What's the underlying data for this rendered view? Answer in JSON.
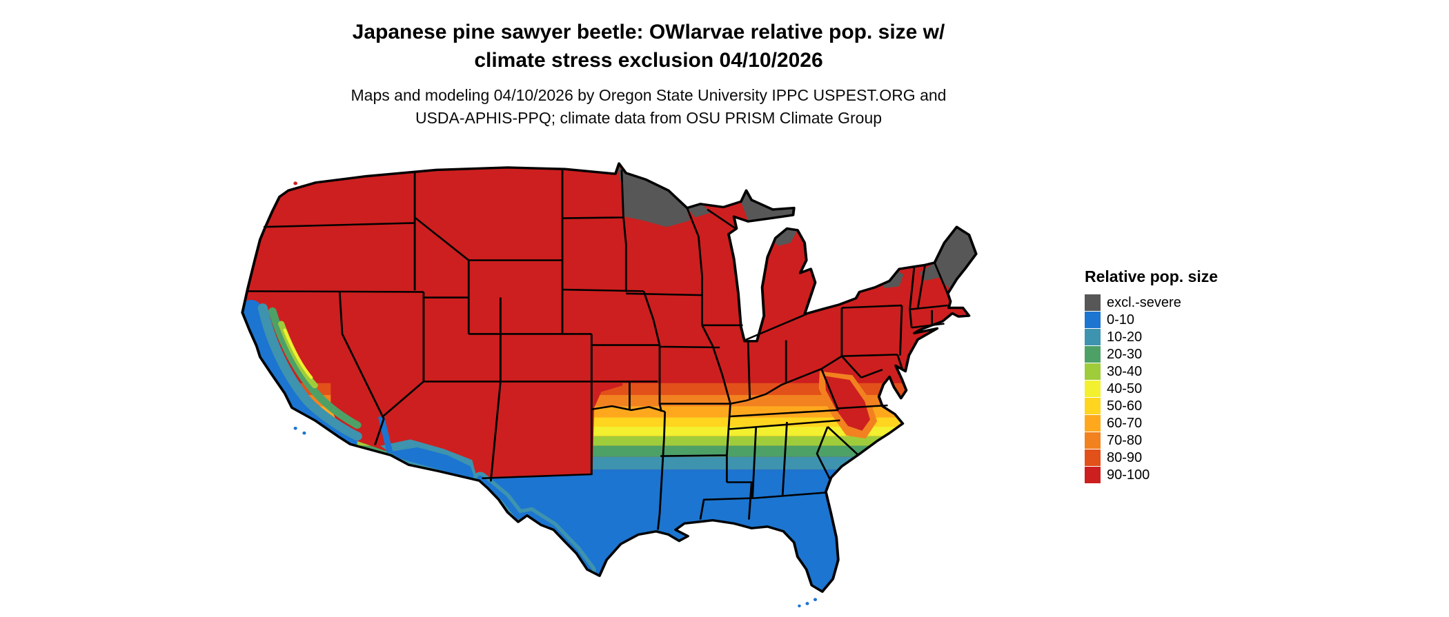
{
  "title": {
    "line1": "Japanese pine sawyer beetle: OWlarvae relative pop. size w/",
    "line2": "climate stress exclusion 04/10/2026"
  },
  "subtitle": {
    "line1": "Maps and modeling 04/10/2026 by Oregon State University IPPC USPEST.ORG and",
    "line2": "USDA-APHIS-PPQ; climate data from OSU PRISM Climate Group"
  },
  "legend": {
    "title": "Relative pop. size",
    "entries": [
      {
        "label": "excl.-severe",
        "color": "#575757"
      },
      {
        "label": "0-10",
        "color": "#1C75D0"
      },
      {
        "label": "10-20",
        "color": "#3E93AE"
      },
      {
        "label": "20-30",
        "color": "#4DA167"
      },
      {
        "label": "30-40",
        "color": "#9FCC3B"
      },
      {
        "label": "40-50",
        "color": "#F2F02F"
      },
      {
        "label": "50-60",
        "color": "#FFD51F"
      },
      {
        "label": "60-70",
        "color": "#FFA81E"
      },
      {
        "label": "70-80",
        "color": "#F28220"
      },
      {
        "label": "80-90",
        "color": "#E2511A"
      },
      {
        "label": "90-100",
        "color": "#CD1F1F"
      }
    ]
  },
  "chart_data": {
    "type": "choropleth_map",
    "region": "Continental United States with state boundaries",
    "variable": "Relative population size of Japanese pine sawyer beetle overwintering larvae, with climate stress exclusion",
    "date_shown": "04/10/2026",
    "classes": [
      "excl.-severe",
      "0-10",
      "10-20",
      "20-30",
      "30-40",
      "40-50",
      "50-60",
      "60-70",
      "70-80",
      "80-90",
      "90-100"
    ],
    "legend_position": "right",
    "pattern": {
      "northern_and_central_us": "90-100 (red) covers most states from the Canadian border south to about 37N",
      "excluded_severe_areas": "northeastern Minnesota, upper Michigan fringe, Adirondacks, northern Maine / northern New England shown excl.-severe (gray)",
      "transition_band": "east-west band from about southern Missouri/Kentucky to the Gulf states stepping 80-90, 70-80, 60-70, 50-60, 40-50, 30-40, 20-30, 10-20",
      "south": "0-10 (blue) across southern Texas, Gulf coast, Florida and the southern Atlantic coastal plain",
      "appalachians": "90-100 (red) tongue extends south along the Appalachian mountains into western North Carolina / north Georgia",
      "california": "coastal strip and valley mosaic of 0-10 through 40-50 with 90-100 in the Sierra and interior",
      "desert_southwest": "0-10 and 10-20 along southern Arizona, lower Colorado River and Rio Grande valley"
    }
  }
}
